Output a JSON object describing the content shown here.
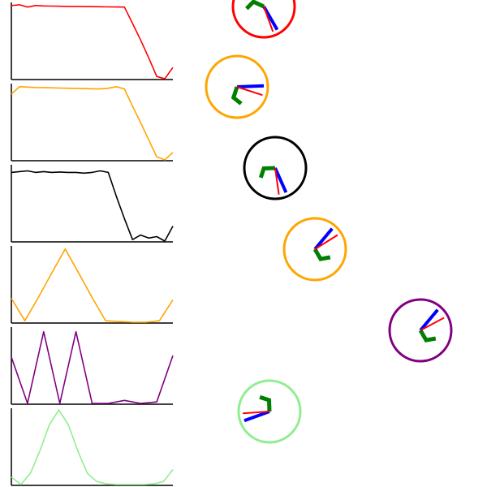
{
  "background_color": "#ffffff",
  "axis_color": "#000000",
  "traces": [
    {
      "name": "red",
      "color": "#ff0000",
      "values": [
        0.98,
        0.99,
        0.96,
        0.98,
        0.975,
        0.973,
        0.971,
        0.969,
        0.968,
        0.966,
        0.965,
        0.964,
        0.962,
        0.961,
        0.96,
        0.74,
        0.52,
        0.28,
        0.03,
        0.0,
        0.15
      ]
    },
    {
      "name": "orange",
      "color": "#ffa500",
      "values": [
        0.88,
        0.98,
        0.975,
        0.97,
        0.968,
        0.965,
        0.962,
        0.96,
        0.958,
        0.955,
        0.952,
        0.95,
        0.96,
        0.98,
        0.95,
        0.72,
        0.5,
        0.27,
        0.04,
        0.0,
        0.1
      ]
    },
    {
      "name": "black",
      "color": "#000000",
      "values": [
        0.92,
        0.93,
        0.94,
        0.92,
        0.93,
        0.92,
        0.925,
        0.92,
        0.92,
        0.91,
        0.92,
        0.94,
        0.92,
        0.6,
        0.3,
        0.02,
        0.08,
        0.04,
        0.06,
        0.0,
        0.2
      ]
    },
    {
      "name": "orange",
      "color": "#ffa500",
      "values": [
        0.32,
        0.02,
        0.33,
        0.66,
        0.98,
        0.66,
        0.33,
        0.02,
        0.01,
        0.0,
        0.0,
        0.02,
        0.3
      ]
    },
    {
      "name": "purple",
      "color": "#800080",
      "values": [
        0.62,
        0.0,
        0.96,
        0.0,
        0.96,
        0.0,
        0.0,
        0.04,
        0.0,
        0.02,
        0.64
      ]
    },
    {
      "name": "light-green",
      "color": "#90ee90",
      "values": [
        0.1,
        0.0,
        0.15,
        0.45,
        0.8,
        1.0,
        0.8,
        0.45,
        0.15,
        0.04,
        0.01,
        0.0,
        0.0,
        0.0,
        0.0,
        0.01,
        0.04,
        0.2
      ]
    }
  ],
  "dials": [
    {
      "name": "red-dial",
      "ring": "#ff0000",
      "blue_angle": 60,
      "red_angle": 70,
      "green_angle": -155
    },
    {
      "name": "orange-dial",
      "ring": "#ffa500",
      "blue_angle": -2,
      "red_angle": 18,
      "green_angle": 108
    },
    {
      "name": "black-dial",
      "ring": "#000000",
      "blue_angle": 66,
      "red_angle": 82,
      "green_angle": 178
    },
    {
      "name": "orange-dial",
      "ring": "#ffa500",
      "blue_angle": -50,
      "red_angle": -32,
      "green_angle": 60
    },
    {
      "name": "purple-dial",
      "ring": "#800080",
      "blue_angle": -50,
      "red_angle": -28,
      "green_angle": 60
    },
    {
      "name": "light-green-dial",
      "ring": "#90ee90",
      "blue_angle": 160,
      "red_angle": 176,
      "green_angle": -92
    }
  ],
  "hand_colors": {
    "blue": "#0000ff",
    "red": "#ff0000",
    "green": "#008000"
  }
}
